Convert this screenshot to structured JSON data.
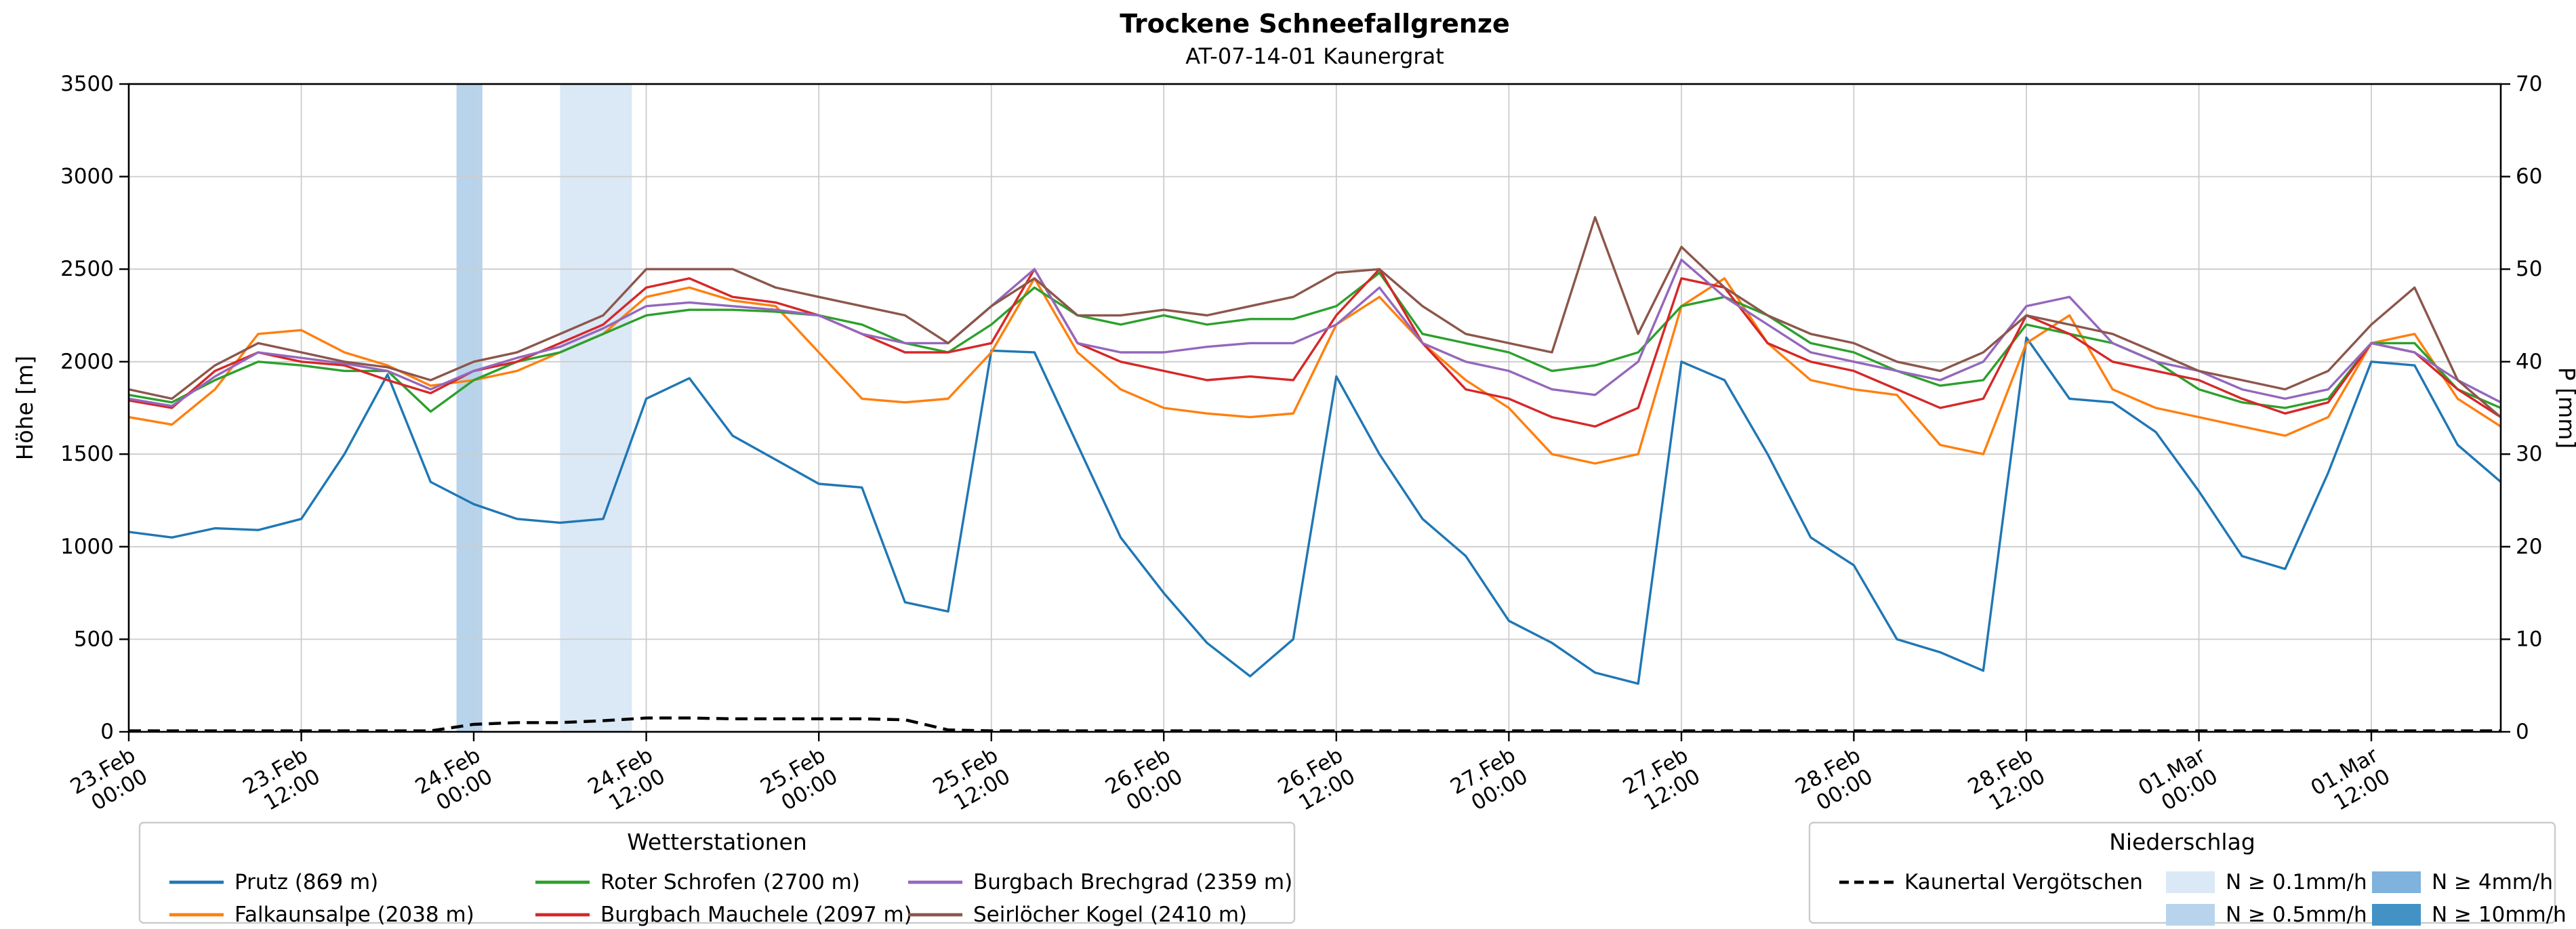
{
  "chart_data": {
    "type": "line",
    "title": "Trockene Schneefallgrenze",
    "subtitle": "AT-07-14-01 Kaunergrat",
    "ylabel_left": "Höhe [m]",
    "ylabel_right": "P [mm]",
    "ylim_left": [
      0,
      3500
    ],
    "yticks_left": [
      0,
      500,
      1000,
      1500,
      2000,
      2500,
      3000,
      3500
    ],
    "ylim_right": [
      0,
      70
    ],
    "yticks_right": [
      0,
      10,
      20,
      30,
      40,
      50,
      60,
      70
    ],
    "xlim": [
      0,
      165
    ],
    "x_ticks": [
      {
        "h": 0,
        "line1": "23.Feb",
        "line2": "00:00"
      },
      {
        "h": 12,
        "line1": "23.Feb",
        "line2": "12:00"
      },
      {
        "h": 24,
        "line1": "24.Feb",
        "line2": "00:00"
      },
      {
        "h": 36,
        "line1": "24.Feb",
        "line2": "12:00"
      },
      {
        "h": 48,
        "line1": "25.Feb",
        "line2": "00:00"
      },
      {
        "h": 60,
        "line1": "25.Feb",
        "line2": "12:00"
      },
      {
        "h": 72,
        "line1": "26.Feb",
        "line2": "00:00"
      },
      {
        "h": 84,
        "line1": "26.Feb",
        "line2": "12:00"
      },
      {
        "h": 96,
        "line1": "27.Feb",
        "line2": "00:00"
      },
      {
        "h": 108,
        "line1": "27.Feb",
        "line2": "12:00"
      },
      {
        "h": 120,
        "line1": "28.Feb",
        "line2": "00:00"
      },
      {
        "h": 132,
        "line1": "28.Feb",
        "line2": "12:00"
      },
      {
        "h": 144,
        "line1": "01.Mar",
        "line2": "00:00"
      },
      {
        "h": 156,
        "line1": "01.Mar",
        "line2": "12:00"
      }
    ],
    "x": [
      0,
      3,
      6,
      9,
      12,
      15,
      18,
      21,
      24,
      27,
      30,
      33,
      36,
      39,
      42,
      45,
      48,
      51,
      54,
      57,
      60,
      63,
      66,
      69,
      72,
      75,
      78,
      81,
      84,
      87,
      90,
      93,
      96,
      99,
      102,
      105,
      108,
      111,
      114,
      117,
      120,
      123,
      126,
      129,
      132,
      135,
      138,
      141,
      144,
      147,
      150,
      153,
      156,
      159,
      162,
      165
    ],
    "series": [
      {
        "name": "Prutz (869 m)",
        "color": "#1f77b4",
        "axis": "left",
        "values": [
          1080,
          1050,
          1100,
          1090,
          1150,
          1500,
          1930,
          1350,
          1230,
          1150,
          1130,
          1150,
          1800,
          1910,
          1600,
          1470,
          1340,
          1320,
          700,
          650,
          2060,
          2050,
          1550,
          1050,
          750,
          480,
          300,
          500,
          1920,
          1500,
          1150,
          950,
          600,
          480,
          320,
          260,
          2000,
          1900,
          1500,
          1050,
          900,
          500,
          430,
          330,
          2130,
          1800,
          1780,
          1620,
          1300,
          950,
          880,
          1400,
          2000,
          1980,
          1550,
          1350
        ]
      },
      {
        "name": "Falkaunsalpe (2038 m)",
        "color": "#ff7f0e",
        "axis": "left",
        "values": [
          1700,
          1660,
          1850,
          2150,
          2170,
          2050,
          1980,
          1870,
          1900,
          1950,
          2050,
          2150,
          2350,
          2400,
          2330,
          2300,
          2050,
          1800,
          1780,
          1800,
          2050,
          2450,
          2050,
          1850,
          1750,
          1720,
          1700,
          1720,
          2200,
          2350,
          2100,
          1900,
          1750,
          1500,
          1450,
          1500,
          2300,
          2450,
          2100,
          1900,
          1850,
          1820,
          1550,
          1500,
          2100,
          2250,
          1850,
          1750,
          1700,
          1650,
          1600,
          1700,
          2100,
          2150,
          1800,
          1650
        ]
      },
      {
        "name": "Roter Schrofen (2700 m)",
        "color": "#2ca02c",
        "axis": "left",
        "values": [
          1820,
          1780,
          1900,
          2000,
          1980,
          1950,
          1950,
          1730,
          1900,
          2000,
          2050,
          2150,
          2250,
          2280,
          2280,
          2270,
          2250,
          2200,
          2100,
          2050,
          2200,
          2400,
          2250,
          2200,
          2250,
          2200,
          2230,
          2230,
          2300,
          2480,
          2150,
          2100,
          2050,
          1950,
          1980,
          2050,
          2300,
          2350,
          2250,
          2100,
          2050,
          1950,
          1870,
          1900,
          2200,
          2150,
          2100,
          2000,
          1850,
          1780,
          1750,
          1800,
          2100,
          2100,
          1850,
          1750
        ]
      },
      {
        "name": "Burgbach Mauchele (2097 m)",
        "color": "#d62728",
        "axis": "left",
        "values": [
          1790,
          1750,
          1950,
          2050,
          2000,
          1980,
          1900,
          1830,
          1950,
          2000,
          2100,
          2200,
          2400,
          2450,
          2350,
          2320,
          2250,
          2150,
          2050,
          2050,
          2100,
          2500,
          2100,
          2000,
          1950,
          1900,
          1920,
          1900,
          2250,
          2500,
          2100,
          1850,
          1800,
          1700,
          1650,
          1750,
          2450,
          2400,
          2100,
          2000,
          1950,
          1850,
          1750,
          1800,
          2250,
          2150,
          2000,
          1950,
          1900,
          1800,
          1720,
          1780,
          2100,
          2050,
          1850,
          1700
        ]
      },
      {
        "name": "Burgbach Brechgrad (2359 m)",
        "color": "#9467bd",
        "axis": "left",
        "values": [
          1800,
          1760,
          1920,
          2050,
          2020,
          1990,
          1950,
          1850,
          1950,
          2020,
          2080,
          2180,
          2300,
          2320,
          2300,
          2280,
          2250,
          2150,
          2100,
          2100,
          2300,
          2500,
          2100,
          2050,
          2050,
          2080,
          2100,
          2100,
          2200,
          2400,
          2100,
          2000,
          1950,
          1850,
          1820,
          2000,
          2550,
          2350,
          2200,
          2050,
          2000,
          1950,
          1900,
          2000,
          2300,
          2350,
          2100,
          2000,
          1950,
          1850,
          1800,
          1850,
          2100,
          2050,
          1900,
          1780
        ]
      },
      {
        "name": "Seirlöcher Kogel (2410 m)",
        "color": "#8c564b",
        "axis": "left",
        "values": [
          1850,
          1800,
          1980,
          2100,
          2050,
          2000,
          1970,
          1900,
          2000,
          2050,
          2150,
          2250,
          2500,
          2500,
          2500,
          2400,
          2350,
          2300,
          2250,
          2100,
          2300,
          2450,
          2250,
          2250,
          2280,
          2250,
          2300,
          2350,
          2480,
          2500,
          2300,
          2150,
          2100,
          2050,
          2780,
          2150,
          2620,
          2400,
          2250,
          2150,
          2100,
          2000,
          1950,
          2050,
          2250,
          2200,
          2150,
          2050,
          1950,
          1900,
          1850,
          1950,
          2200,
          2400,
          1900,
          1700
        ]
      }
    ],
    "precip_series": {
      "name": "Kaunertal Vergötschen",
      "color": "#000000",
      "dashed": true,
      "axis": "right",
      "values": [
        0.1,
        0.1,
        0.1,
        0.1,
        0.1,
        0.1,
        0.1,
        0.1,
        0.8,
        1.0,
        1.0,
        1.2,
        1.5,
        1.5,
        1.4,
        1.4,
        1.4,
        1.4,
        1.3,
        0.2,
        0.1,
        0.1,
        0.1,
        0.1,
        0.1,
        0.1,
        0.1,
        0.1,
        0.1,
        0.1,
        0.1,
        0.1,
        0.1,
        0.1,
        0.1,
        0.1,
        0.1,
        0.1,
        0.1,
        0.1,
        0.1,
        0.1,
        0.1,
        0.1,
        0.1,
        0.1,
        0.1,
        0.1,
        0.1,
        0.1,
        0.1,
        0.1,
        0.1,
        0.1,
        0.1,
        0.1
      ]
    },
    "bands": [
      {
        "from": 22.8,
        "to": 24.6,
        "level": "0.5"
      },
      {
        "from": 30,
        "to": 35,
        "level": "0.1"
      }
    ],
    "band_colors": {
      "0.1": "#dbe8f6",
      "0.5": "#b8d4ec",
      "4": "#7fb2dc",
      "10": "#4292c6"
    },
    "grid": true,
    "legend_position": "bottom"
  },
  "legends": {
    "stations": {
      "title": "Wetterstationen"
    },
    "precip": {
      "title": "Niederschlag",
      "patch_items": [
        {
          "label": "N ≥ 0.1mm/h",
          "level": "0.1"
        },
        {
          "label": "N ≥ 0.5mm/h",
          "level": "0.5"
        },
        {
          "label": "N ≥ 4mm/h",
          "level": "4"
        },
        {
          "label": "N ≥ 10mm/h",
          "level": "10"
        }
      ]
    }
  }
}
